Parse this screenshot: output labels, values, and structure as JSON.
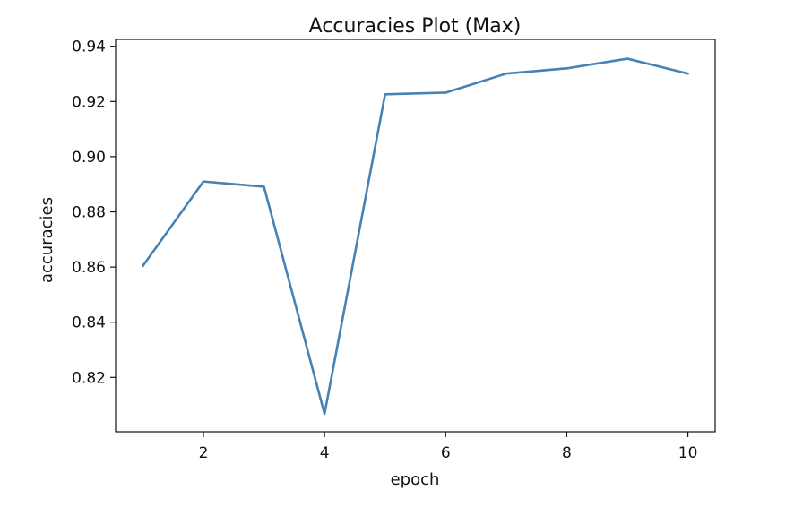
{
  "chart_data": {
    "type": "line",
    "title": "Accuracies Plot (Max)",
    "xlabel": "epoch",
    "ylabel": "accuracies",
    "xlim": [
      0.55,
      10.45
    ],
    "ylim": [
      0.8003,
      0.9425
    ],
    "x_ticks": [
      2,
      4,
      6,
      8,
      10
    ],
    "x_tick_labels": [
      "2",
      "4",
      "6",
      "8",
      "10"
    ],
    "y_ticks": [
      0.82,
      0.84,
      0.86,
      0.88,
      0.9,
      0.92,
      0.94
    ],
    "y_tick_labels": [
      "0.82",
      "0.84",
      "0.86",
      "0.88",
      "0.90",
      "0.92",
      "0.94"
    ],
    "grid": false,
    "legend": "none",
    "series_color": "#4682b4",
    "series": [
      {
        "x": [
          1,
          2,
          3,
          4,
          5,
          6,
          7,
          8,
          9,
          10
        ],
        "y": [
          0.8604,
          0.891,
          0.8891,
          0.8068,
          0.9226,
          0.9232,
          0.9301,
          0.932,
          0.9355,
          0.9301
        ]
      }
    ]
  }
}
